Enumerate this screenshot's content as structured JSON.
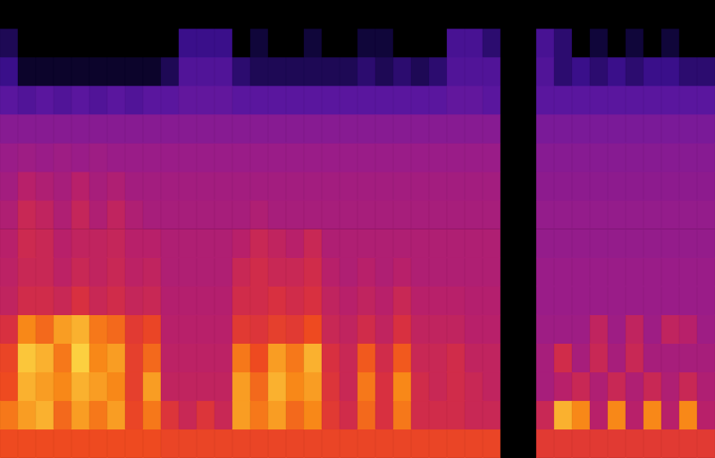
{
  "chart_data": {
    "type": "heatmap",
    "tick_labels": false,
    "grid": false,
    "zlim": [
      0,
      100
    ],
    "cells": [
      [
        0,
        0,
        0,
        0,
        0,
        0,
        0,
        0,
        0,
        0,
        0,
        0,
        0,
        0,
        0,
        0,
        0,
        0,
        0,
        0,
        0,
        0,
        0,
        0,
        0,
        0,
        0,
        0,
        0,
        0,
        0,
        0,
        0,
        0,
        0,
        0,
        0,
        0,
        0,
        0
      ],
      [
        25,
        0,
        0,
        0,
        0,
        0,
        0,
        0,
        0,
        0,
        35,
        35,
        35,
        0,
        20,
        0,
        0,
        20,
        0,
        0,
        20,
        20,
        0,
        0,
        0,
        38,
        38,
        30,
        0,
        0,
        38,
        30,
        0,
        20,
        0,
        20,
        0,
        20,
        0,
        0
      ],
      [
        35,
        15,
        15,
        15,
        15,
        15,
        15,
        15,
        15,
        25,
        40,
        40,
        40,
        30,
        25,
        25,
        25,
        25,
        25,
        25,
        30,
        25,
        30,
        25,
        30,
        40,
        40,
        40,
        0,
        0,
        40,
        30,
        35,
        30,
        35,
        30,
        35,
        35,
        30,
        30
      ],
      [
        42,
        40,
        42,
        40,
        42,
        40,
        42,
        40,
        42,
        42,
        44,
        44,
        44,
        42,
        42,
        42,
        42,
        42,
        42,
        42,
        42,
        42,
        42,
        42,
        42,
        44,
        44,
        42,
        0,
        0,
        42,
        42,
        42,
        42,
        42,
        42,
        42,
        42,
        42,
        42
      ],
      [
        52,
        52,
        52,
        52,
        52,
        52,
        52,
        52,
        52,
        52,
        52,
        52,
        52,
        52,
        52,
        52,
        52,
        52,
        52,
        52,
        52,
        52,
        52,
        52,
        52,
        52,
        52,
        52,
        0,
        0,
        50,
        50,
        50,
        50,
        50,
        50,
        50,
        50,
        50,
        50
      ],
      [
        55,
        56,
        55,
        56,
        55,
        56,
        55,
        55,
        55,
        55,
        55,
        55,
        55,
        55,
        55,
        55,
        55,
        55,
        55,
        55,
        55,
        55,
        55,
        55,
        55,
        55,
        55,
        55,
        0,
        0,
        52,
        52,
        52,
        52,
        52,
        52,
        52,
        52,
        52,
        52
      ],
      [
        57,
        62,
        60,
        58,
        62,
        58,
        60,
        57,
        57,
        57,
        57,
        57,
        57,
        57,
        57,
        57,
        57,
        57,
        57,
        57,
        57,
        57,
        57,
        57,
        57,
        57,
        57,
        57,
        0,
        0,
        53,
        53,
        53,
        53,
        53,
        53,
        53,
        53,
        53,
        53
      ],
      [
        60,
        66,
        64,
        60,
        65,
        60,
        64,
        60,
        58,
        58,
        58,
        58,
        58,
        58,
        60,
        58,
        58,
        58,
        58,
        58,
        58,
        58,
        58,
        58,
        58,
        58,
        58,
        58,
        0,
        0,
        54,
        54,
        54,
        54,
        54,
        54,
        54,
        54,
        54,
        54
      ],
      [
        62,
        67,
        66,
        62,
        64,
        64,
        65,
        62,
        62,
        60,
        60,
        60,
        60,
        62,
        66,
        64,
        62,
        66,
        60,
        60,
        60,
        60,
        60,
        60,
        60,
        60,
        60,
        60,
        0,
        0,
        54,
        54,
        54,
        54,
        54,
        54,
        54,
        54,
        54,
        54
      ],
      [
        63,
        66,
        66,
        63,
        66,
        64,
        66,
        63,
        64,
        60,
        60,
        60,
        60,
        66,
        68,
        66,
        66,
        68,
        62,
        60,
        62,
        60,
        62,
        60,
        60,
        60,
        60,
        60,
        0,
        0,
        55,
        55,
        55,
        55,
        55,
        55,
        55,
        55,
        55,
        55
      ],
      [
        64,
        68,
        68,
        66,
        70,
        66,
        68,
        65,
        66,
        61,
        61,
        61,
        61,
        68,
        68,
        70,
        68,
        70,
        64,
        62,
        64,
        62,
        66,
        62,
        62,
        62,
        61,
        61,
        0,
        0,
        55,
        55,
        55,
        55,
        55,
        55,
        55,
        55,
        55,
        55
      ],
      [
        70,
        88,
        84,
        90,
        92,
        86,
        84,
        74,
        78,
        62,
        62,
        62,
        62,
        74,
        72,
        76,
        74,
        80,
        66,
        64,
        68,
        64,
        70,
        64,
        64,
        64,
        62,
        62,
        0,
        0,
        56,
        56,
        56,
        64,
        56,
        64,
        56,
        64,
        62,
        56
      ],
      [
        78,
        94,
        92,
        86,
        95,
        88,
        90,
        76,
        84,
        63,
        63,
        63,
        63,
        86,
        80,
        90,
        86,
        92,
        70,
        66,
        82,
        68,
        82,
        66,
        66,
        68,
        64,
        64,
        0,
        0,
        58,
        68,
        58,
        66,
        58,
        66,
        58,
        58,
        58,
        58
      ],
      [
        80,
        92,
        90,
        88,
        92,
        90,
        88,
        76,
        90,
        64,
        64,
        64,
        64,
        90,
        84,
        92,
        88,
        90,
        72,
        66,
        86,
        70,
        88,
        68,
        66,
        68,
        66,
        64,
        0,
        0,
        58,
        62,
        66,
        60,
        66,
        60,
        66,
        60,
        66,
        60
      ],
      [
        86,
        90,
        92,
        84,
        90,
        86,
        90,
        78,
        86,
        72,
        66,
        72,
        66,
        90,
        86,
        90,
        84,
        88,
        74,
        68,
        84,
        70,
        86,
        68,
        68,
        68,
        66,
        66,
        0,
        0,
        66,
        92,
        88,
        62,
        88,
        62,
        88,
        62,
        88,
        62
      ],
      [
        80,
        80,
        80,
        80,
        80,
        80,
        80,
        80,
        80,
        78,
        78,
        78,
        78,
        78,
        78,
        78,
        78,
        78,
        78,
        78,
        78,
        78,
        78,
        78,
        78,
        78,
        78,
        78,
        0,
        0,
        74,
        74,
        74,
        74,
        74,
        74,
        74,
        74,
        74,
        74
      ]
    ]
  }
}
